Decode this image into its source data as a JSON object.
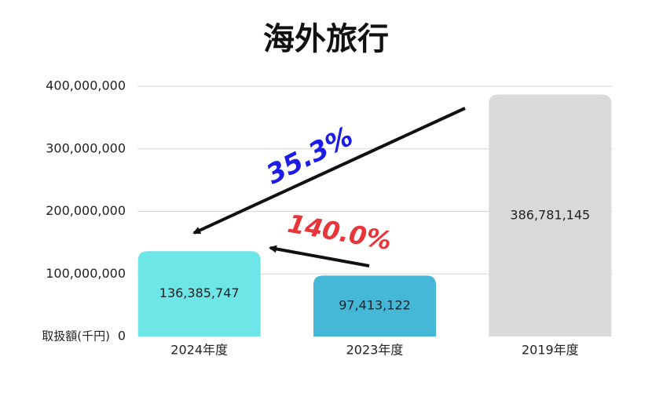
{
  "chart_data": {
    "type": "bar",
    "title": "海外旅行",
    "y_label": "取扱額(千円)",
    "categories": [
      "2024年度",
      "2023年度",
      "2019年度"
    ],
    "values": [
      136385747,
      97413122,
      386781145
    ],
    "value_labels": [
      "136,385,747",
      "97,413,122",
      "386,781,145"
    ],
    "colors": [
      "#6ee6e8",
      "#45b8d8",
      "#d9d9d9"
    ],
    "ylim": [
      0,
      400000000
    ],
    "yticks": [
      0,
      {
        "value": 100000000,
        "label": "100,000,000"
      },
      {
        "value": 200000000,
        "label": "200,000,000"
      },
      {
        "value": 300000000,
        "label": "300,000,000"
      },
      {
        "value": 400000000,
        "label": "400,000,000"
      }
    ],
    "grid": true,
    "annotations": [
      {
        "text": "35.3%",
        "color": "#1c1ce8"
      },
      {
        "text": "140.0%",
        "color": "#e8353a"
      }
    ]
  }
}
